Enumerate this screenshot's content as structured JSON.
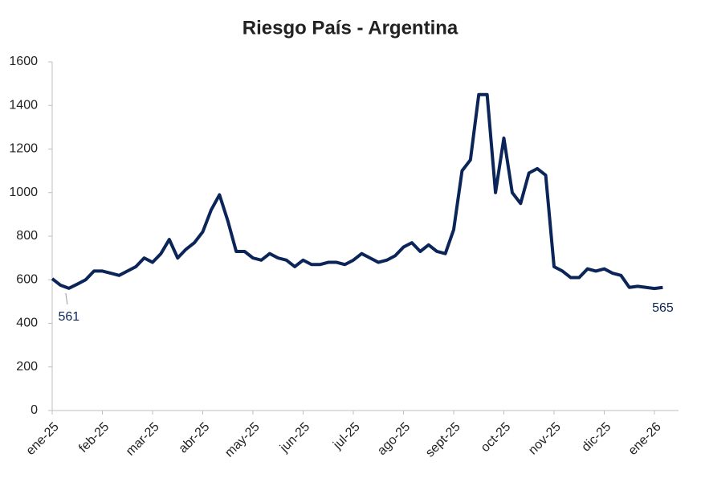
{
  "chart_data": {
    "type": "line",
    "title": "Riesgo País - Argentina",
    "categories": [
      "ene-25",
      null,
      null,
      null,
      null,
      null,
      "feb-25",
      null,
      null,
      null,
      null,
      null,
      "mar-25",
      null,
      null,
      null,
      null,
      null,
      "abr-25",
      null,
      null,
      null,
      null,
      null,
      "may-25",
      null,
      null,
      null,
      null,
      null,
      "jun-25",
      null,
      null,
      null,
      null,
      null,
      "jul-25",
      null,
      null,
      null,
      null,
      null,
      "ago-25",
      null,
      null,
      null,
      null,
      null,
      "sept-25",
      null,
      null,
      null,
      null,
      null,
      "oct-25",
      null,
      null,
      null,
      null,
      null,
      "nov-25",
      null,
      null,
      null,
      null,
      null,
      "dic-25",
      null,
      null,
      null,
      null,
      null,
      "ene-26",
      null
    ],
    "values": [
      605,
      575,
      561,
      580,
      600,
      640,
      640,
      630,
      620,
      640,
      660,
      700,
      680,
      720,
      785,
      700,
      740,
      770,
      820,
      920,
      990,
      870,
      730,
      730,
      700,
      690,
      720,
      700,
      690,
      660,
      690,
      670,
      670,
      680,
      680,
      670,
      690,
      720,
      700,
      680,
      690,
      710,
      750,
      770,
      730,
      760,
      730,
      720,
      830,
      1100,
      1150,
      1450,
      1450,
      1000,
      1250,
      1000,
      950,
      1090,
      1110,
      1080,
      660,
      640,
      610,
      610,
      650,
      640,
      650,
      630,
      620,
      565,
      570,
      565,
      560,
      565
    ],
    "color": "#0b2559",
    "ylim": [
      0,
      1600
    ],
    "yticks": [
      0,
      200,
      400,
      600,
      800,
      1000,
      1200,
      1400,
      1600
    ],
    "grid": false
  }
}
